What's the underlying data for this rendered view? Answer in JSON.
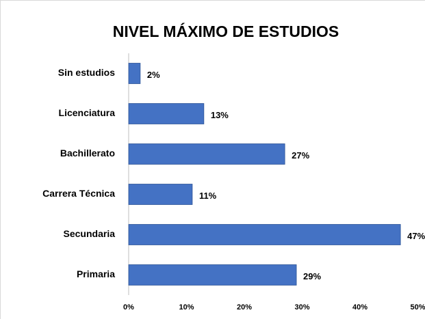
{
  "chart_data": {
    "type": "bar",
    "orientation": "horizontal",
    "title": "NIVEL MÁXIMO DE ESTUDIOS",
    "categories": [
      "Sin estudios",
      "Licenciatura",
      "Bachillerato",
      "Carrera Técnica",
      "Secundaria",
      "Primaria"
    ],
    "values": [
      2,
      13,
      27,
      11,
      47,
      29
    ],
    "value_labels": [
      "2%",
      "13%",
      "27%",
      "11%",
      "47%",
      "29%"
    ],
    "color": "#4472c4",
    "xlim": [
      0,
      50
    ],
    "xticks": [
      {
        "value": 0,
        "label": "0%"
      },
      {
        "value": 10,
        "label": "10%"
      },
      {
        "value": 20,
        "label": "20%"
      },
      {
        "value": 30,
        "label": "30%"
      },
      {
        "value": 40,
        "label": "40%"
      },
      {
        "value": 50,
        "label": "50%"
      }
    ],
    "grid": false
  }
}
